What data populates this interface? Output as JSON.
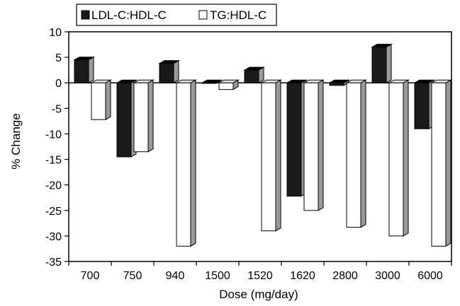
{
  "chart_data": {
    "type": "bar",
    "style": "3d-clustered-column",
    "title": "",
    "xlabel": "Dose (mg/day)",
    "ylabel": "% Change",
    "ylim": [
      -35,
      10
    ],
    "ytick_step": 5,
    "grid": false,
    "legend_position": "top-left",
    "categories": [
      "700",
      "750",
      "940",
      "1500",
      "1520",
      "1620",
      "2800",
      "3000",
      "6000"
    ],
    "series": [
      {
        "name": "LDL-C:HDL-C",
        "color": "#1a1a1a",
        "values": [
          4.5,
          -14.5,
          3.8,
          0,
          2.5,
          -22.2,
          -0.5,
          7,
          -9
        ]
      },
      {
        "name": "TG:HDL-C",
        "color": "#ffffff",
        "values": [
          -7.2,
          -13.5,
          -32,
          -1.3,
          -29,
          -25,
          -28.3,
          -30,
          -32
        ]
      }
    ]
  }
}
